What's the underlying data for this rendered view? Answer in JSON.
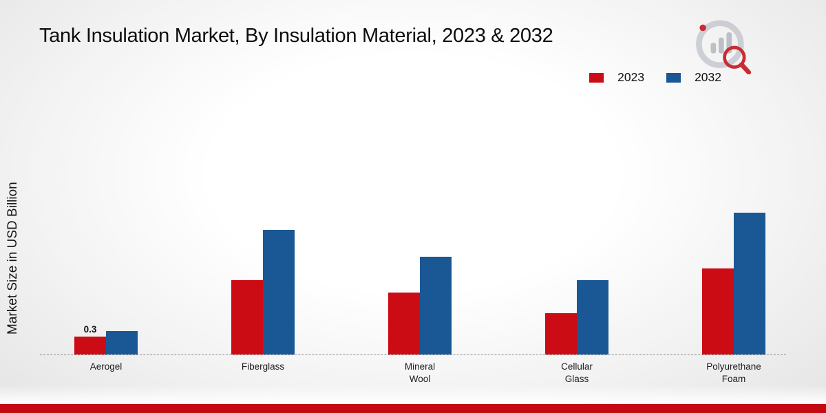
{
  "page": {
    "title": "Tank Insulation Market, By Insulation Material, 2023 & 2032",
    "ylabel": "Market Size in USD Billion"
  },
  "legend": [
    {
      "label": "2023",
      "color": "#cb0c15"
    },
    {
      "label": "2032",
      "color": "#1a5795"
    }
  ],
  "footer": {
    "bar_color": "#c40a12"
  },
  "chart_data": {
    "type": "bar",
    "title": "Tank Insulation Market, By Insulation Material, 2023 & 2032",
    "xlabel": "",
    "ylabel": "Market Size in USD Billion",
    "categories": [
      "Aerogel",
      "Fiberglass",
      "Mineral Wool",
      "Cellular Glass",
      "Polyurethane Foam"
    ],
    "series": [
      {
        "name": "2023",
        "color": "#cb0c15",
        "values": [
          0.3,
          1.25,
          1.05,
          0.7,
          1.45
        ],
        "labels": [
          "0.3",
          "",
          "",
          "",
          ""
        ]
      },
      {
        "name": "2032",
        "color": "#1a5795",
        "values": [
          0.4,
          2.1,
          1.65,
          1.25,
          2.4
        ],
        "labels": [
          "",
          "",
          "",
          "",
          ""
        ]
      }
    ],
    "ylim": [
      0,
      2.6
    ],
    "grid": false,
    "axis_style": "dashed-baseline-only",
    "legend_position": "top-right"
  }
}
